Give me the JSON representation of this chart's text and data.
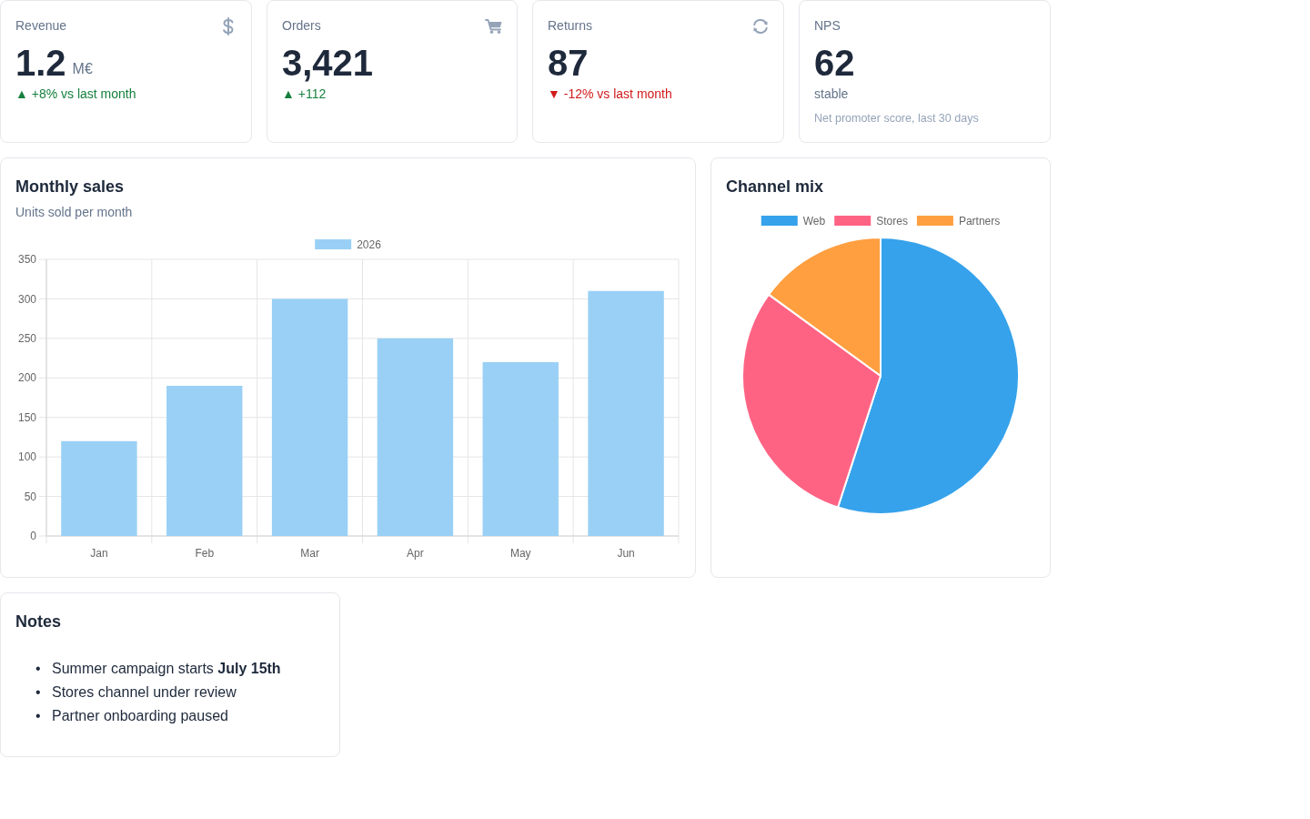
{
  "chart_data": [
    {
      "type": "other",
      "title": "Revenue",
      "annotations": [
        "1.2",
        "M€",
        "▲ +8% vs last month"
      ]
    },
    {
      "type": "other",
      "title": "Orders",
      "annotations": [
        "3,421",
        "▲ +112"
      ]
    },
    {
      "type": "other",
      "title": "Returns",
      "annotations": [
        "87",
        "▼ -12% vs last month"
      ]
    },
    {
      "type": "other",
      "title": "NPS",
      "annotations": [
        "62",
        "stable",
        "Net promoter score, last 30 days"
      ]
    },
    {
      "type": "bar",
      "title": "Monthly sales",
      "subtitle": "Units sold per month",
      "categories": [
        "Jan",
        "Feb",
        "Mar",
        "Apr",
        "May",
        "Jun"
      ],
      "series": [
        {
          "name": "2026",
          "color": "#9ad0f5",
          "values": [
            120,
            190,
            300,
            250,
            220,
            310
          ]
        }
      ],
      "ylim": [
        0,
        350
      ],
      "yticks": [
        0,
        50,
        100,
        150,
        200,
        250,
        300,
        350
      ],
      "grid": true,
      "legend": "top"
    },
    {
      "type": "pie",
      "title": "Channel mix",
      "categories": [
        "Web",
        "Stores",
        "Partners"
      ],
      "values": [
        55,
        30,
        15
      ],
      "colors": [
        "#36a2eb",
        "#ff6384",
        "#ff9f40"
      ],
      "legend": "top"
    },
    {
      "type": "other",
      "title": "Notes",
      "annotations": [
        "• Summer campaign starts July 15th",
        "• Stores channel under review",
        "• Partner onboarding paused"
      ]
    }
  ]
}
